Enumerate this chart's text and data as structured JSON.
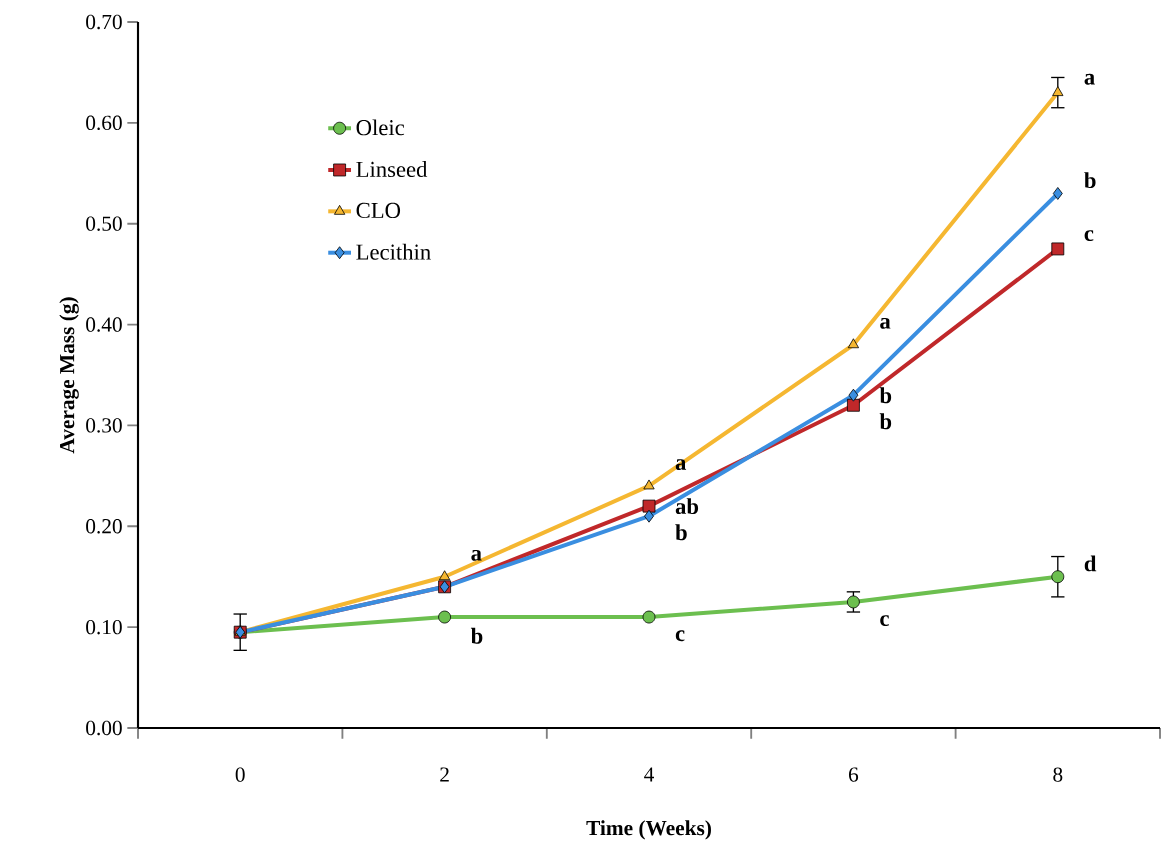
{
  "chart_data": {
    "type": "line",
    "xlabel": "Time (Weeks)",
    "ylabel": "Average Mass (g)",
    "categories": [
      "0",
      "2",
      "4",
      "6",
      "8"
    ],
    "ylim": [
      0,
      0.7
    ],
    "yticks": [
      {
        "value": 0,
        "label": "0.00"
      },
      {
        "value": 0.1,
        "label": "0.10"
      },
      {
        "value": 0.2,
        "label": "0.20"
      },
      {
        "value": 0.3,
        "label": "0.30"
      },
      {
        "value": 0.4,
        "label": "0.40"
      },
      {
        "value": 0.5,
        "label": "0.50"
      },
      {
        "value": 0.6,
        "label": "0.60"
      },
      {
        "value": 0.7,
        "label": "0.70"
      }
    ],
    "grid": false,
    "legend": "top left",
    "line_style": "solid",
    "series": [
      {
        "name": "Oleic",
        "color": "#6cbf4f",
        "marker": "circle",
        "values": [
          0.095,
          0.11,
          0.11,
          0.125,
          0.15
        ],
        "errors": [
          0.018,
          null,
          null,
          0.01,
          0.02
        ]
      },
      {
        "name": "Linseed",
        "color": "#c0282a",
        "marker": "square",
        "values": [
          0.095,
          0.14,
          0.22,
          0.32,
          0.475
        ]
      },
      {
        "name": "CLO",
        "color": "#f5b731",
        "marker": "triangle",
        "values": [
          0.095,
          0.15,
          0.24,
          0.38,
          0.63
        ],
        "errors": [
          null,
          null,
          null,
          null,
          0.015
        ]
      },
      {
        "name": "Lecithin",
        "color": "#3a8ee0",
        "marker": "diamond",
        "values": [
          0.095,
          0.14,
          0.21,
          0.33,
          0.53
        ]
      }
    ],
    "annotations": [
      {
        "text": "a",
        "x": "2",
        "y": 0.15
      },
      {
        "text": "b",
        "x": "2",
        "y": 0.11
      },
      {
        "text": "a",
        "x": "4",
        "y": 0.24
      },
      {
        "text": "ab",
        "x": "4",
        "y": 0.22
      },
      {
        "text": "b",
        "x": "4",
        "y": 0.21
      },
      {
        "text": "c",
        "x": "4",
        "y": 0.11
      },
      {
        "text": "a",
        "x": "6",
        "y": 0.38
      },
      {
        "text": "b",
        "x": "6",
        "y": 0.33
      },
      {
        "text": "b",
        "x": "6",
        "y": 0.32
      },
      {
        "text": "c",
        "x": "6",
        "y": 0.125
      },
      {
        "text": "a",
        "x": "8",
        "y": 0.63
      },
      {
        "text": "b",
        "x": "8",
        "y": 0.53
      },
      {
        "text": "c",
        "x": "8",
        "y": 0.475
      },
      {
        "text": "d",
        "x": "8",
        "y": 0.15
      }
    ]
  }
}
